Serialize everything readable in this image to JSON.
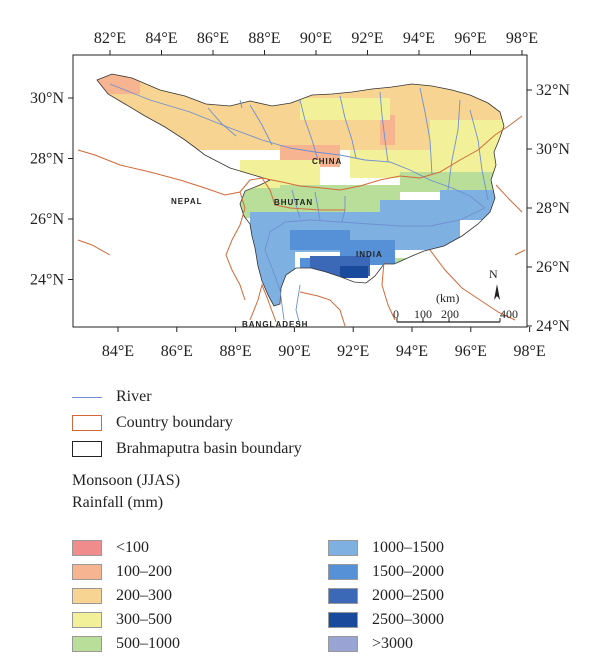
{
  "axes": {
    "top_lon": [
      "82°E",
      "84°E",
      "86°E",
      "88°E",
      "90°E",
      "92°E",
      "94°E",
      "96°E",
      "98°E"
    ],
    "bottom_lon": [
      "84°E",
      "86°E",
      "88°E",
      "90°E",
      "92°E",
      "94°E",
      "96°E",
      "98°E"
    ],
    "left_lat": [
      "30°N",
      "28°N",
      "26°N",
      "24°N"
    ],
    "right_lat": [
      "32°N",
      "30°N",
      "28°N",
      "26°N",
      "24°N"
    ]
  },
  "map_labels": {
    "china": "CHINA",
    "nepal": "NEPAL",
    "bhutan": "BHUTAN",
    "india": "INDIA",
    "bangladesh": "BANGLADESH"
  },
  "scale_bar": {
    "unit": "(km)",
    "labels": [
      "0",
      "100",
      "200",
      "400"
    ],
    "north": "N"
  },
  "legend": {
    "river": "River",
    "country": "Country boundary",
    "basin": "Brahmaputra basin boundary",
    "title_line1": "Monsoon (JJAS)",
    "title_line2": "Rainfall (mm)",
    "bins": [
      {
        "label": "<100",
        "color": "#f08c8c"
      },
      {
        "label": "1000–1500",
        "color": "#7fb0e2"
      },
      {
        "label": "100–200",
        "color": "#f7b491"
      },
      {
        "label": "1500–2000",
        "color": "#5690d6"
      },
      {
        "label": "200–300",
        "color": "#f7d492"
      },
      {
        "label": "2000–2500",
        "color": "#3b69b8"
      },
      {
        "label": "300–500",
        "color": "#f2f19a"
      },
      {
        "label": "2500–3000",
        "color": "#1a4a9c"
      },
      {
        "label": "500–1000",
        "color": "#b9de9a"
      },
      {
        "label": ">3000",
        "color": "#9aa4d4"
      }
    ]
  },
  "colors": {
    "river": "#6f8fd0",
    "country_boundary": "#d2693a",
    "basin_boundary": "#222222"
  }
}
